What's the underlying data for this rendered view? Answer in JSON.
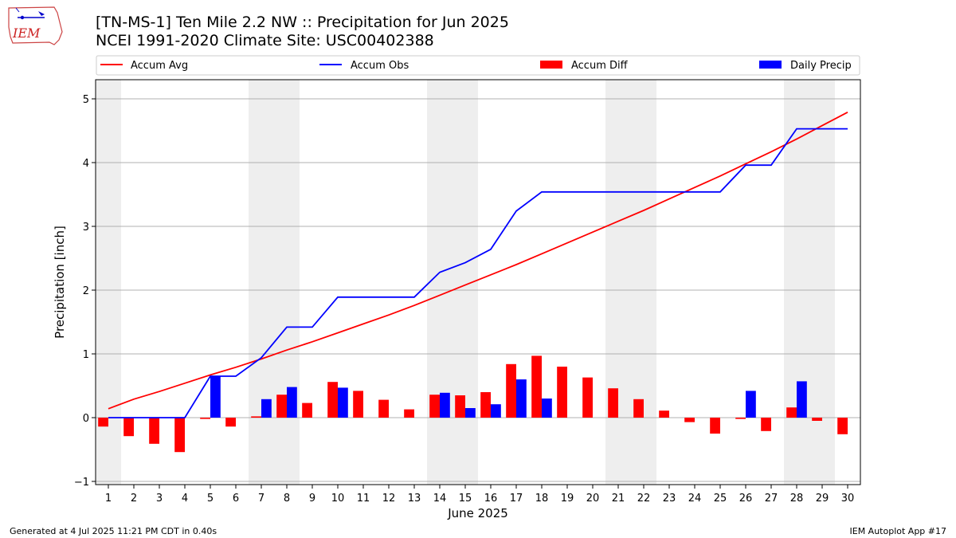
{
  "header": {
    "title_line1": "[TN-MS-1] Ten Mile 2.2 NW :: Precipitation for Jun 2025",
    "title_line2": "NCEI 1991-2020 Climate Site: USC00402388"
  },
  "logo": {
    "text": "IEM"
  },
  "footer": {
    "left": "Generated at 4 Jul 2025 11:21 PM CDT in 0.40s",
    "right": "IEM Autoplot App #17"
  },
  "colors": {
    "avg": "#ff0000",
    "obs": "#0000ff",
    "diff": "#ff0000",
    "daily": "#0000ff",
    "weekend": "#eeeeee",
    "grid": "#b0b0b0"
  },
  "chart_data": {
    "type": "bar",
    "xlabel": "June 2025",
    "ylabel": "Precipitation [inch]",
    "ylim": [
      -1.05,
      5.3
    ],
    "yticks": [
      -1,
      0,
      1,
      2,
      3,
      4,
      5
    ],
    "grid": "horizontal",
    "legend_position": "top",
    "weekend_shading_days": [
      [
        1,
        1
      ],
      [
        7,
        8
      ],
      [
        14,
        15
      ],
      [
        21,
        22
      ],
      [
        28,
        29
      ]
    ],
    "x": [
      1,
      2,
      3,
      4,
      5,
      6,
      7,
      8,
      9,
      10,
      11,
      12,
      13,
      14,
      15,
      16,
      17,
      18,
      19,
      20,
      21,
      22,
      23,
      24,
      25,
      26,
      27,
      28,
      29,
      30
    ],
    "series": [
      {
        "name": "Accum Avg",
        "kind": "line",
        "values": [
          0.14,
          0.29,
          0.41,
          0.54,
          0.67,
          0.79,
          0.92,
          1.06,
          1.19,
          1.33,
          1.47,
          1.61,
          1.76,
          1.92,
          2.08,
          2.24,
          2.4,
          2.57,
          2.74,
          2.91,
          3.08,
          3.25,
          3.43,
          3.61,
          3.79,
          3.98,
          4.17,
          4.37,
          4.58,
          4.79
        ]
      },
      {
        "name": "Accum Obs",
        "kind": "line",
        "values": [
          0.0,
          0.0,
          0.0,
          0.0,
          0.65,
          0.65,
          0.94,
          1.42,
          1.42,
          1.89,
          1.89,
          1.89,
          1.89,
          2.28,
          2.43,
          2.64,
          3.24,
          3.54,
          3.54,
          3.54,
          3.54,
          3.54,
          3.54,
          3.54,
          3.54,
          3.96,
          3.96,
          4.53,
          4.53,
          4.53
        ]
      },
      {
        "name": "Accum Diff",
        "kind": "bar",
        "values": [
          -0.14,
          -0.29,
          -0.41,
          -0.54,
          -0.02,
          -0.14,
          0.02,
          0.36,
          0.23,
          0.56,
          0.42,
          0.28,
          0.13,
          0.36,
          0.35,
          0.4,
          0.84,
          0.97,
          0.8,
          0.63,
          0.46,
          0.29,
          0.11,
          -0.07,
          -0.25,
          -0.02,
          -0.21,
          0.16,
          -0.05,
          -0.26
        ]
      },
      {
        "name": "Daily Precip",
        "kind": "bar",
        "values": [
          0,
          0,
          0,
          0,
          0.65,
          0,
          0.29,
          0.48,
          0,
          0.47,
          0,
          0,
          0,
          0.39,
          0.15,
          0.21,
          0.6,
          0.3,
          0,
          0,
          0,
          0,
          0,
          0,
          0,
          0.42,
          0,
          0.57,
          0,
          0
        ]
      }
    ]
  }
}
